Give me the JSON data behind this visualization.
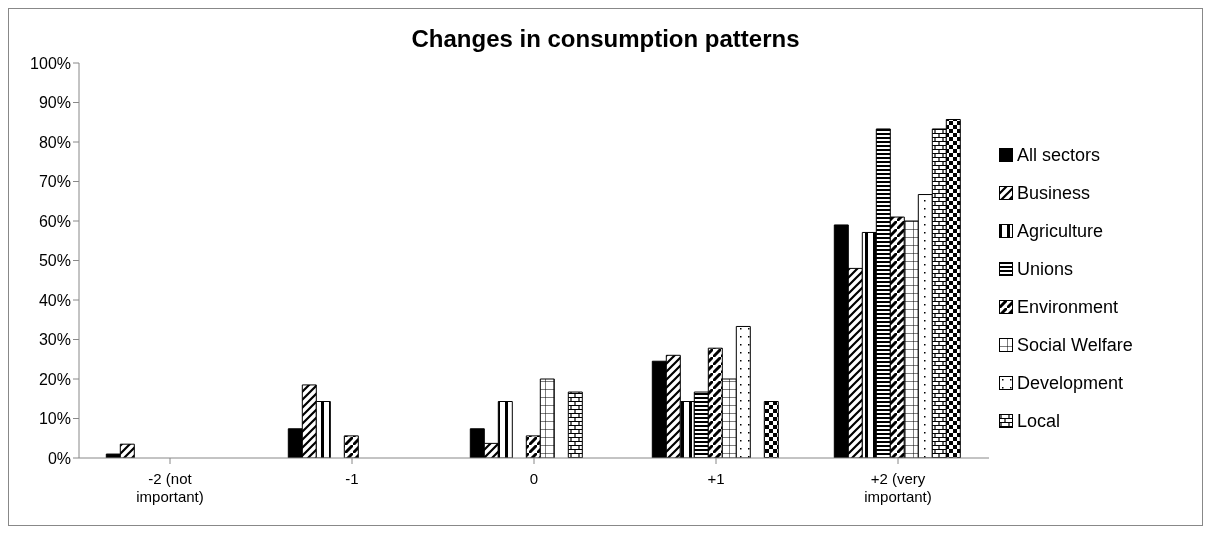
{
  "chart_data": {
    "type": "bar",
    "title": "Changes in consumption patterns",
    "categories": [
      "-2 (not important)",
      "-1",
      "0",
      "+1",
      "+2 (very important)"
    ],
    "series": [
      {
        "name": "All sectors",
        "color": "#000000",
        "values": [
          1,
          7.4,
          7.4,
          24.5,
          59
        ]
      },
      {
        "name": "Business",
        "color": "#000000",
        "values": [
          3.5,
          18.5,
          3.7,
          26,
          48
        ]
      },
      {
        "name": "Agriculture",
        "color": "#000000",
        "values": [
          0,
          14.3,
          14.3,
          14.3,
          57.1
        ]
      },
      {
        "name": "Unions",
        "color": "#000000",
        "values": [
          0,
          0,
          0,
          16.7,
          83.3
        ]
      },
      {
        "name": "Environment",
        "color": "#000000",
        "values": [
          0,
          5.6,
          5.6,
          27.8,
          61
        ]
      },
      {
        "name": "Social Welfare",
        "color": "#000000",
        "values": [
          0,
          0,
          20,
          20,
          60
        ]
      },
      {
        "name": "Development",
        "color": "#000000",
        "values": [
          0,
          0,
          0,
          33.3,
          66.7
        ]
      },
      {
        "name": "Local",
        "color": "#000000",
        "values": [
          0,
          0,
          16.7,
          0,
          83.3
        ]
      },
      {
        "color": "#000000",
        "values": [
          0,
          0,
          0,
          14.3,
          85.7
        ]
      }
    ],
    "ylim": [
      0,
      100
    ],
    "yticks": [
      {
        "value": 0,
        "label": "0%"
      },
      {
        "value": 10,
        "label": "10%"
      },
      {
        "value": 20,
        "label": "20%"
      },
      {
        "value": 30,
        "label": "30%"
      },
      {
        "value": 40,
        "label": "40%"
      },
      {
        "value": 50,
        "label": "50%"
      },
      {
        "value": 60,
        "label": "60%"
      },
      {
        "value": 70,
        "label": "70%"
      },
      {
        "value": 80,
        "label": "80%"
      },
      {
        "value": 90,
        "label": "90%"
      },
      {
        "value": 100,
        "label": "100%"
      }
    ],
    "grid": false,
    "legend": "right"
  }
}
